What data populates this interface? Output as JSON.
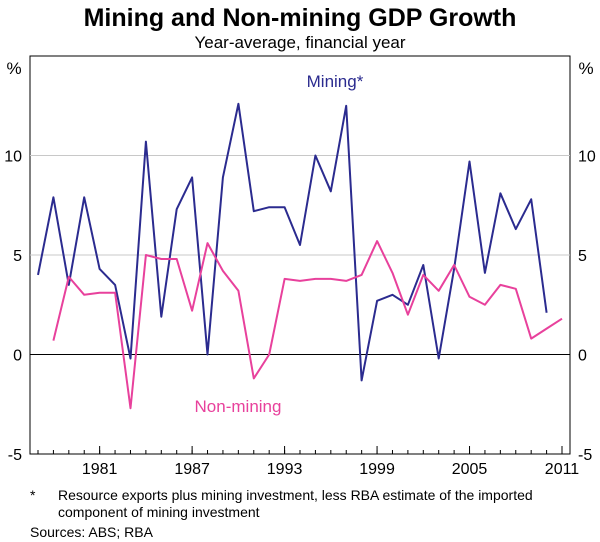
{
  "chart_data": {
    "type": "line",
    "title": "Mining and Non-mining GDP Growth",
    "subtitle": "Year-average, financial year",
    "y_unit_left": "%",
    "y_unit_right": "%",
    "ylim": [
      -5,
      15
    ],
    "yticks": [
      -5,
      0,
      5,
      10
    ],
    "x_tick_labels": [
      "1981",
      "1987",
      "1993",
      "1999",
      "2005",
      "2011"
    ],
    "x_tick_years": [
      1981,
      1987,
      1993,
      1999,
      2005,
      2011
    ],
    "grid": true,
    "x": [
      1977,
      1978,
      1979,
      1980,
      1981,
      1982,
      1983,
      1984,
      1985,
      1986,
      1987,
      1988,
      1989,
      1990,
      1991,
      1992,
      1993,
      1994,
      1995,
      1996,
      1997,
      1998,
      1999,
      2000,
      2001,
      2002,
      2003,
      2004,
      2005,
      2006,
      2007,
      2008,
      2009,
      2010,
      2011
    ],
    "series": [
      {
        "name": "Mining*",
        "color": "#2b2b8f",
        "values": [
          4.0,
          7.9,
          3.5,
          7.9,
          4.3,
          3.5,
          -0.2,
          10.7,
          1.9,
          7.3,
          8.9,
          0.0,
          8.9,
          12.6,
          7.2,
          7.4,
          7.4,
          5.5,
          10.0,
          8.2,
          12.5,
          -1.3,
          2.7,
          3.0,
          2.5,
          4.5,
          -0.2,
          4.3,
          9.7,
          4.1,
          8.1,
          6.3,
          7.8,
          2.1,
          null
        ]
      },
      {
        "name": "Non-mining",
        "color": "#e8419c",
        "values": [
          null,
          0.7,
          3.9,
          3.0,
          3.1,
          3.1,
          -2.7,
          5.0,
          4.8,
          4.8,
          2.2,
          5.6,
          4.2,
          3.2,
          -1.2,
          0.0,
          3.8,
          3.7,
          3.8,
          3.8,
          3.7,
          4.0,
          5.7,
          4.1,
          2.0,
          4.0,
          3.2,
          4.5,
          2.9,
          2.5,
          3.5,
          3.3,
          0.8,
          1.3,
          1.8
        ]
      }
    ]
  },
  "footnote": {
    "marker": "*",
    "text": "Resource exports plus mining investment, less RBA estimate of the imported component of mining investment",
    "sources": "Sources: ABS; RBA"
  }
}
